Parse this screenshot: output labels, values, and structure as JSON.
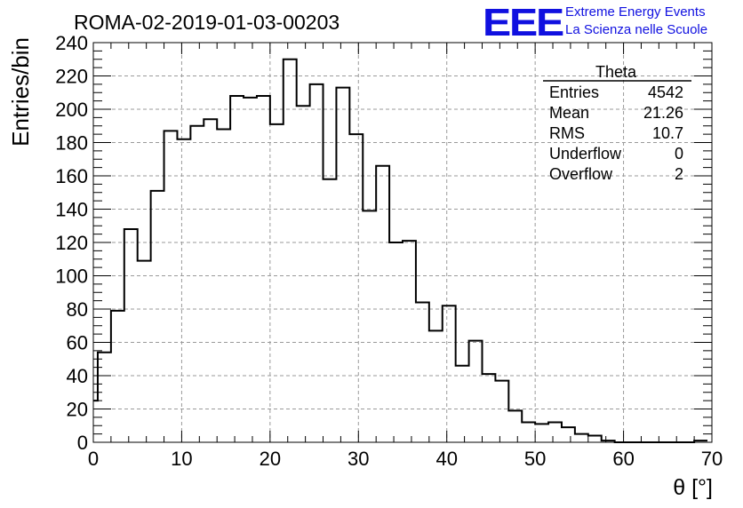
{
  "chart_data": {
    "type": "bar",
    "style": "step-histogram",
    "title": "ROMA-02-2019-01-03-00203",
    "xlabel": "θ [°]",
    "ylabel": "Entries/bin",
    "xlim": [
      0,
      70
    ],
    "ylim": [
      0,
      240
    ],
    "x_ticks": [
      0,
      10,
      20,
      30,
      40,
      50,
      60,
      70
    ],
    "y_ticks": [
      0,
      20,
      40,
      60,
      80,
      100,
      120,
      140,
      160,
      180,
      200,
      220,
      240
    ],
    "grid": true,
    "bin_width": 1.5,
    "bins": [
      {
        "x": 0,
        "y": 25
      },
      {
        "x": 0.5,
        "y": 54
      },
      {
        "x": 2,
        "y": 79
      },
      {
        "x": 3.5,
        "y": 128
      },
      {
        "x": 5,
        "y": 109
      },
      {
        "x": 6.5,
        "y": 151
      },
      {
        "x": 8,
        "y": 187
      },
      {
        "x": 9.5,
        "y": 182
      },
      {
        "x": 11,
        "y": 190
      },
      {
        "x": 12.5,
        "y": 194
      },
      {
        "x": 14,
        "y": 188
      },
      {
        "x": 15.5,
        "y": 208
      },
      {
        "x": 17,
        "y": 207
      },
      {
        "x": 18.5,
        "y": 208
      },
      {
        "x": 20,
        "y": 191
      },
      {
        "x": 21.5,
        "y": 230
      },
      {
        "x": 23,
        "y": 202
      },
      {
        "x": 24.5,
        "y": 215
      },
      {
        "x": 26,
        "y": 158
      },
      {
        "x": 27.5,
        "y": 213
      },
      {
        "x": 29,
        "y": 185
      },
      {
        "x": 30.5,
        "y": 139
      },
      {
        "x": 32,
        "y": 166
      },
      {
        "x": 33.5,
        "y": 120
      },
      {
        "x": 35,
        "y": 121
      },
      {
        "x": 36.5,
        "y": 84
      },
      {
        "x": 38,
        "y": 67
      },
      {
        "x": 39.5,
        "y": 82
      },
      {
        "x": 41,
        "y": 46
      },
      {
        "x": 42.5,
        "y": 61
      },
      {
        "x": 44,
        "y": 41
      },
      {
        "x": 45.5,
        "y": 37
      },
      {
        "x": 47,
        "y": 19
      },
      {
        "x": 48.5,
        "y": 12
      },
      {
        "x": 50,
        "y": 11
      },
      {
        "x": 51.5,
        "y": 12
      },
      {
        "x": 53,
        "y": 9
      },
      {
        "x": 54.5,
        "y": 5
      },
      {
        "x": 56,
        "y": 4
      },
      {
        "x": 57.5,
        "y": 1
      },
      {
        "x": 59,
        "y": 0
      },
      {
        "x": 60.5,
        "y": 0
      },
      {
        "x": 62,
        "y": 0
      },
      {
        "x": 63.5,
        "y": 0
      },
      {
        "x": 65,
        "y": 0
      },
      {
        "x": 66.5,
        "y": 0
      },
      {
        "x": 68,
        "y": 1
      }
    ],
    "stats_box": {
      "name": "Theta",
      "rows": [
        {
          "label": "Entries",
          "value": "4542"
        },
        {
          "label": "Mean",
          "value": "21.26"
        },
        {
          "label": "RMS",
          "value": "10.7"
        },
        {
          "label": "Underflow",
          "value": "0"
        },
        {
          "label": "Overflow",
          "value": "2"
        }
      ]
    },
    "logo": {
      "mark": "EEE",
      "line1": "Extreme Energy Events",
      "line2": "La Scienza nelle Scuole",
      "color": "#1010e0"
    }
  }
}
